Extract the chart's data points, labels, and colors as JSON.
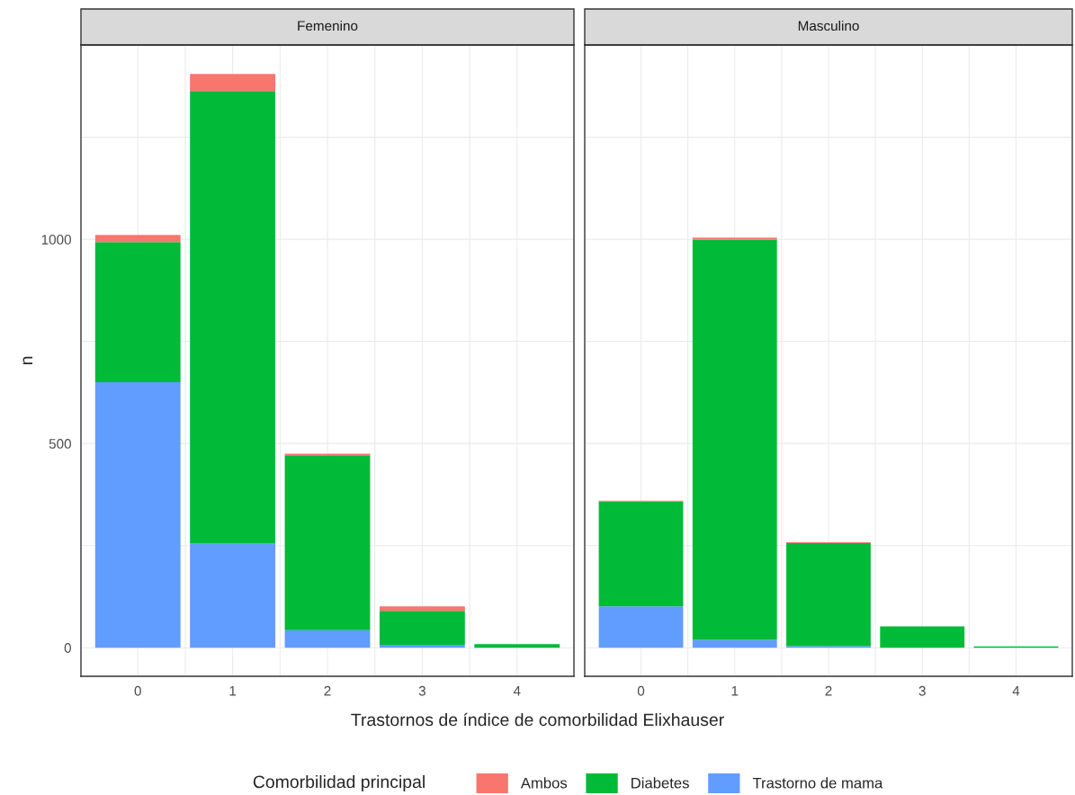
{
  "chart_data": [
    {
      "type": "bar",
      "title": "Femenino",
      "xlabel": "Trastornos de índice de comorbilidad Elixhauser",
      "ylabel": "n",
      "legend_title": "Comorbilidad principal",
      "legend": "bottom",
      "stacked": true,
      "grid": true,
      "categories": [
        "0",
        "1",
        "2",
        "3",
        "4"
      ],
      "ylim": [
        -70,
        1476
      ],
      "yticks": [
        0,
        500,
        1000
      ],
      "series": [
        {
          "name": "Trastorno de mama",
          "color": "#619cff",
          "values": [
            650,
            255,
            43,
            7,
            0
          ]
        },
        {
          "name": "Diabetes",
          "color": "#00ba38",
          "values": [
            343,
            1108,
            428,
            83,
            9
          ]
        },
        {
          "name": "Ambos",
          "color": "#f8766d",
          "values": [
            18,
            42,
            4,
            11,
            0
          ]
        }
      ]
    },
    {
      "type": "bar",
      "title": "Masculino",
      "stacked": true,
      "grid": true,
      "tick_labels": "x",
      "categories": [
        "0",
        "1",
        "2",
        "3",
        "4"
      ],
      "ylim": [
        -70,
        1476
      ],
      "yticks": [
        0,
        500,
        1000
      ],
      "series": [
        {
          "color": "#619cff",
          "values": [
            101,
            20,
            4,
            0,
            0
          ]
        },
        {
          "color": "#00ba38",
          "values": [
            257,
            979,
            252,
            52,
            3
          ]
        },
        {
          "color": "#f8766d",
          "values": [
            2,
            5,
            2,
            0,
            0
          ]
        }
      ]
    }
  ]
}
